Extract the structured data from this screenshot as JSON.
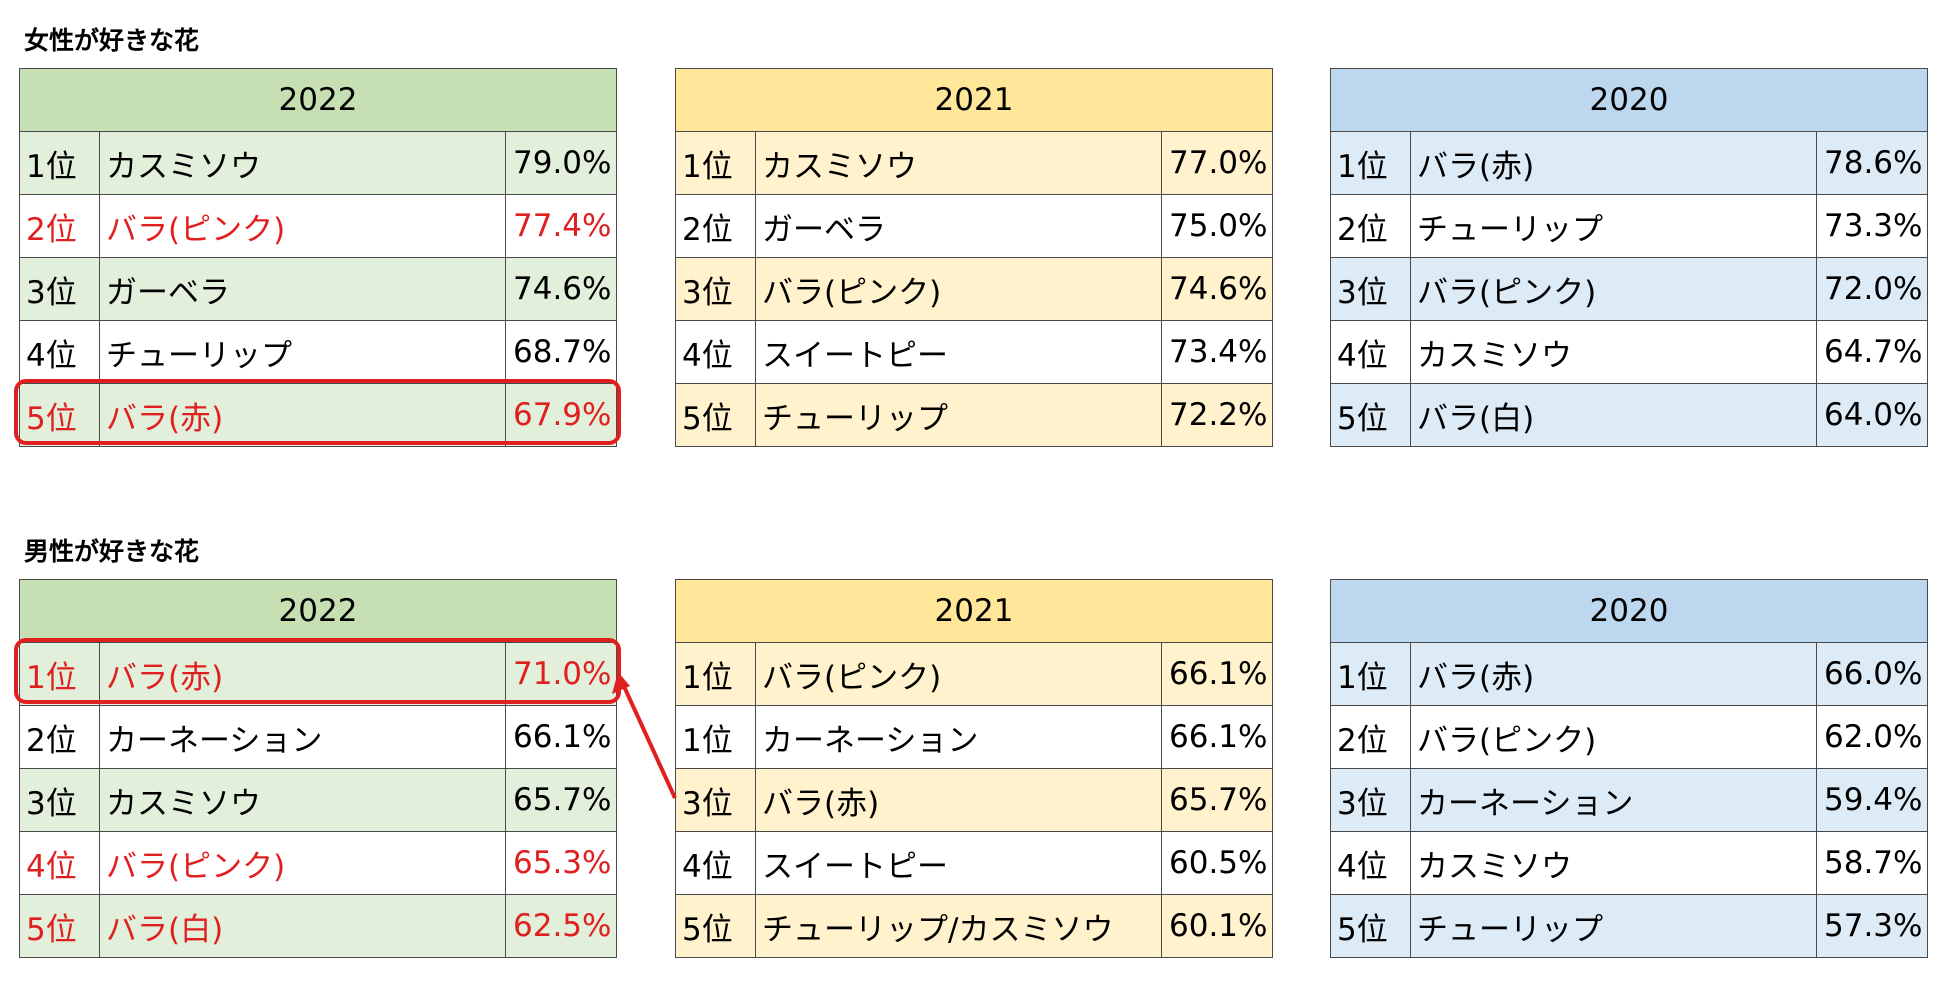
{
  "sections": [
    {
      "title": "女性が好きな花",
      "tables": [
        {
          "year": "2022",
          "header_color": "#c6e0b4",
          "stripe_color": "#e2efda",
          "rows": [
            {
              "rank": "1位",
              "name": "カスミソウ",
              "pct": "79.0%",
              "highlight": false
            },
            {
              "rank": "2位",
              "name": "バラ(ピンク)",
              "pct": "77.4%",
              "highlight": true
            },
            {
              "rank": "3位",
              "name": "ガーベラ",
              "pct": "74.6%",
              "highlight": false
            },
            {
              "rank": "4位",
              "name": "チューリップ",
              "pct": "68.7%",
              "highlight": false
            },
            {
              "rank": "5位",
              "name": "バラ(赤)",
              "pct": "67.9%",
              "highlight": true
            }
          ]
        },
        {
          "year": "2021",
          "header_color": "#ffe699",
          "stripe_color": "#fff2cc",
          "rows": [
            {
              "rank": "1位",
              "name": "カスミソウ",
              "pct": "77.0%",
              "highlight": false
            },
            {
              "rank": "2位",
              "name": "ガーベラ",
              "pct": "75.0%",
              "highlight": false
            },
            {
              "rank": "3位",
              "name": "バラ(ピンク)",
              "pct": "74.6%",
              "highlight": false
            },
            {
              "rank": "4位",
              "name": "スイートピー",
              "pct": "73.4%",
              "highlight": false
            },
            {
              "rank": "5位",
              "name": "チューリップ",
              "pct": "72.2%",
              "highlight": false
            }
          ]
        },
        {
          "year": "2020",
          "header_color": "#bdd7ee",
          "stripe_color": "#ddebf7",
          "rows": [
            {
              "rank": "1位",
              "name": "バラ(赤)",
              "pct": "78.6%",
              "highlight": false
            },
            {
              "rank": "2位",
              "name": "チューリップ",
              "pct": "73.3%",
              "highlight": false
            },
            {
              "rank": "3位",
              "name": "バラ(ピンク)",
              "pct": "72.0%",
              "highlight": false
            },
            {
              "rank": "4位",
              "name": "カスミソウ",
              "pct": "64.7%",
              "highlight": false
            },
            {
              "rank": "5位",
              "name": "バラ(白)",
              "pct": "64.0%",
              "highlight": false
            }
          ]
        }
      ]
    },
    {
      "title": "男性が好きな花",
      "tables": [
        {
          "year": "2022",
          "header_color": "#c6e0b4",
          "stripe_color": "#e2efda",
          "rows": [
            {
              "rank": "1位",
              "name": "バラ(赤)",
              "pct": "71.0%",
              "highlight": true
            },
            {
              "rank": "2位",
              "name": "カーネーション",
              "pct": "66.1%",
              "highlight": false
            },
            {
              "rank": "3位",
              "name": "カスミソウ",
              "pct": "65.7%",
              "highlight": false
            },
            {
              "rank": "4位",
              "name": "バラ(ピンク)",
              "pct": "65.3%",
              "highlight": true
            },
            {
              "rank": "5位",
              "name": "バラ(白)",
              "pct": "62.5%",
              "highlight": true
            }
          ]
        },
        {
          "year": "2021",
          "header_color": "#ffe699",
          "stripe_color": "#fff2cc",
          "rows": [
            {
              "rank": "1位",
              "name": "バラ(ピンク)",
              "pct": "66.1%",
              "highlight": false
            },
            {
              "rank": "1位",
              "name": "カーネーション",
              "pct": "66.1%",
              "highlight": false
            },
            {
              "rank": "3位",
              "name": "バラ(赤)",
              "pct": "65.7%",
              "highlight": false
            },
            {
              "rank": "4位",
              "name": "スイートピー",
              "pct": "60.5%",
              "highlight": false
            },
            {
              "rank": "5位",
              "name": "チューリップ/カスミソウ",
              "pct": "60.1%",
              "highlight": false
            }
          ]
        },
        {
          "year": "2020",
          "header_color": "#bdd7ee",
          "stripe_color": "#ddebf7",
          "rows": [
            {
              "rank": "1位",
              "name": "バラ(赤)",
              "pct": "66.0%",
              "highlight": false
            },
            {
              "rank": "2位",
              "name": "バラ(ピンク)",
              "pct": "62.0%",
              "highlight": false
            },
            {
              "rank": "3位",
              "name": "カーネーション",
              "pct": "59.4%",
              "highlight": false
            },
            {
              "rank": "4位",
              "name": "カスミソウ",
              "pct": "58.7%",
              "highlight": false
            },
            {
              "rank": "5位",
              "name": "チューリップ",
              "pct": "57.3%",
              "highlight": false
            }
          ]
        }
      ]
    }
  ],
  "accent_red": "#e02020"
}
